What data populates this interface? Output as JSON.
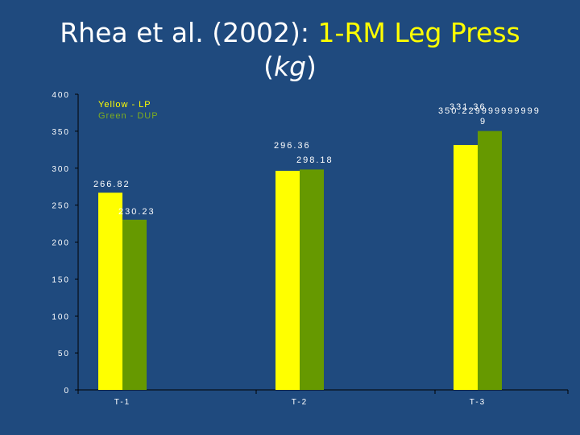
{
  "title": {
    "prefix": "Rhea et al. (2002): ",
    "highlight": "1-RM Leg Press",
    "paren_open": "(",
    "unit": "kg",
    "paren_close": ")"
  },
  "legend": {
    "line1": "Yellow - LP",
    "line2": "Green - DUP"
  },
  "colors": {
    "background": "#1f4a7e",
    "lp": "#ffff00",
    "dup": "#669900",
    "text": "#ffffff",
    "axis": "#000000"
  },
  "chart_data": {
    "type": "bar",
    "categories": [
      "T-1",
      "T-2",
      "T-3"
    ],
    "series": [
      {
        "name": "Yellow - LP",
        "values": [
          266.82,
          296.36,
          331.36
        ]
      },
      {
        "name": "Green - DUP",
        "values": [
          230.23,
          298.18,
          350.23
        ]
      }
    ],
    "data_labels": [
      [
        "266.82",
        "296.36",
        "331.36"
      ],
      [
        "230.23",
        "298.18",
        "350.229999999999\n9"
      ]
    ],
    "ylim": [
      0,
      400
    ],
    "yticks": [
      0,
      50,
      100,
      150,
      200,
      250,
      300,
      350,
      400
    ],
    "xlabel": "",
    "ylabel": "",
    "grid": false,
    "legend_position": "top-left"
  }
}
